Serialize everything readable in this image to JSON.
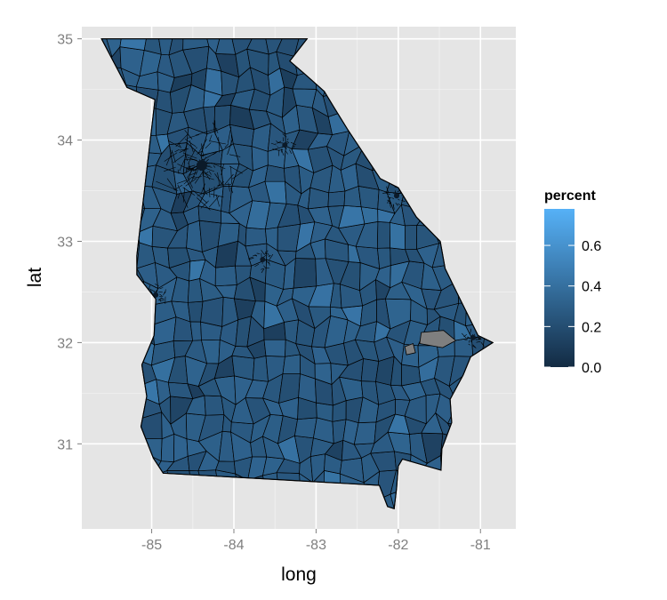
{
  "chart_data": {
    "type": "choropleth",
    "xlabel": "long",
    "ylabel": "lat",
    "xlim": [
      -85.85,
      -80.57
    ],
    "ylim": [
      30.16,
      35.12
    ],
    "x_ticks": [
      -85,
      -84,
      -83,
      -82,
      -81
    ],
    "x_tick_labels": [
      "-85",
      "-84",
      "-83",
      "-82",
      "-81"
    ],
    "y_ticks": [
      31,
      32,
      33,
      34,
      35
    ],
    "y_tick_labels": [
      "31",
      "32",
      "33",
      "34",
      "35"
    ],
    "grid": true,
    "legend": {
      "title": "percent",
      "placement": "right",
      "breaks": [
        0.0,
        0.2,
        0.4,
        0.6
      ],
      "break_labels": [
        "0.0",
        "0.2",
        "0.4",
        "0.6"
      ],
      "range": [
        0,
        0.78
      ],
      "low_color": "#132B43",
      "high_color": "#56B1F7"
    },
    "missing_color": "#7f7f7f",
    "region": "Georgia",
    "outline_lonlat": [
      [
        -85.61,
        35.0
      ],
      [
        -83.11,
        35.0
      ],
      [
        -83.32,
        34.78
      ],
      [
        -83.12,
        34.64
      ],
      [
        -82.9,
        34.48
      ],
      [
        -82.78,
        34.32
      ],
      [
        -82.62,
        34.11
      ],
      [
        -82.22,
        33.62
      ],
      [
        -82.0,
        33.53
      ],
      [
        -81.78,
        33.24
      ],
      [
        -81.49,
        33.0
      ],
      [
        -81.43,
        32.73
      ],
      [
        -81.25,
        32.43
      ],
      [
        -81.03,
        32.07
      ],
      [
        -80.85,
        32.0
      ],
      [
        -81.12,
        31.86
      ],
      [
        -81.21,
        31.68
      ],
      [
        -81.37,
        31.44
      ],
      [
        -81.35,
        31.21
      ],
      [
        -81.47,
        30.95
      ],
      [
        -81.48,
        30.74
      ],
      [
        -81.95,
        30.85
      ],
      [
        -82.0,
        30.78
      ],
      [
        -82.02,
        30.57
      ],
      [
        -82.05,
        30.36
      ],
      [
        -82.13,
        30.38
      ],
      [
        -82.23,
        30.59
      ],
      [
        -84.86,
        30.71
      ],
      [
        -84.98,
        30.86
      ],
      [
        -85.13,
        31.17
      ],
      [
        -85.06,
        31.47
      ],
      [
        -85.12,
        31.78
      ],
      [
        -84.97,
        32.07
      ],
      [
        -84.95,
        32.43
      ],
      [
        -85.18,
        32.67
      ],
      [
        -85.18,
        32.86
      ],
      [
        -84.96,
        34.4
      ],
      [
        -85.3,
        34.52
      ]
    ],
    "notable_regions": [
      {
        "name_hint": "atlanta-cluster",
        "lon": -84.39,
        "lat": 33.75
      },
      {
        "name_hint": "augusta-cluster",
        "lon": -82.02,
        "lat": 33.45
      },
      {
        "name_hint": "savannah-cluster",
        "lon": -81.09,
        "lat": 32.05
      },
      {
        "name_hint": "macon-cluster",
        "lon": -83.65,
        "lat": 32.82
      },
      {
        "name_hint": "columbus-cluster",
        "lon": -84.95,
        "lat": 32.47
      },
      {
        "name_hint": "athens-cluster",
        "lon": -83.38,
        "lat": 33.95
      }
    ],
    "missing_regions": [
      {
        "lonlat": [
          [
            -81.72,
            32.1
          ],
          [
            -81.45,
            32.12
          ],
          [
            -81.3,
            32.02
          ],
          [
            -81.46,
            31.95
          ],
          [
            -81.74,
            31.99
          ]
        ]
      },
      {
        "lonlat": [
          [
            -81.92,
            31.96
          ],
          [
            -81.82,
            31.99
          ],
          [
            -81.79,
            31.9
          ],
          [
            -81.9,
            31.88
          ]
        ]
      }
    ]
  }
}
